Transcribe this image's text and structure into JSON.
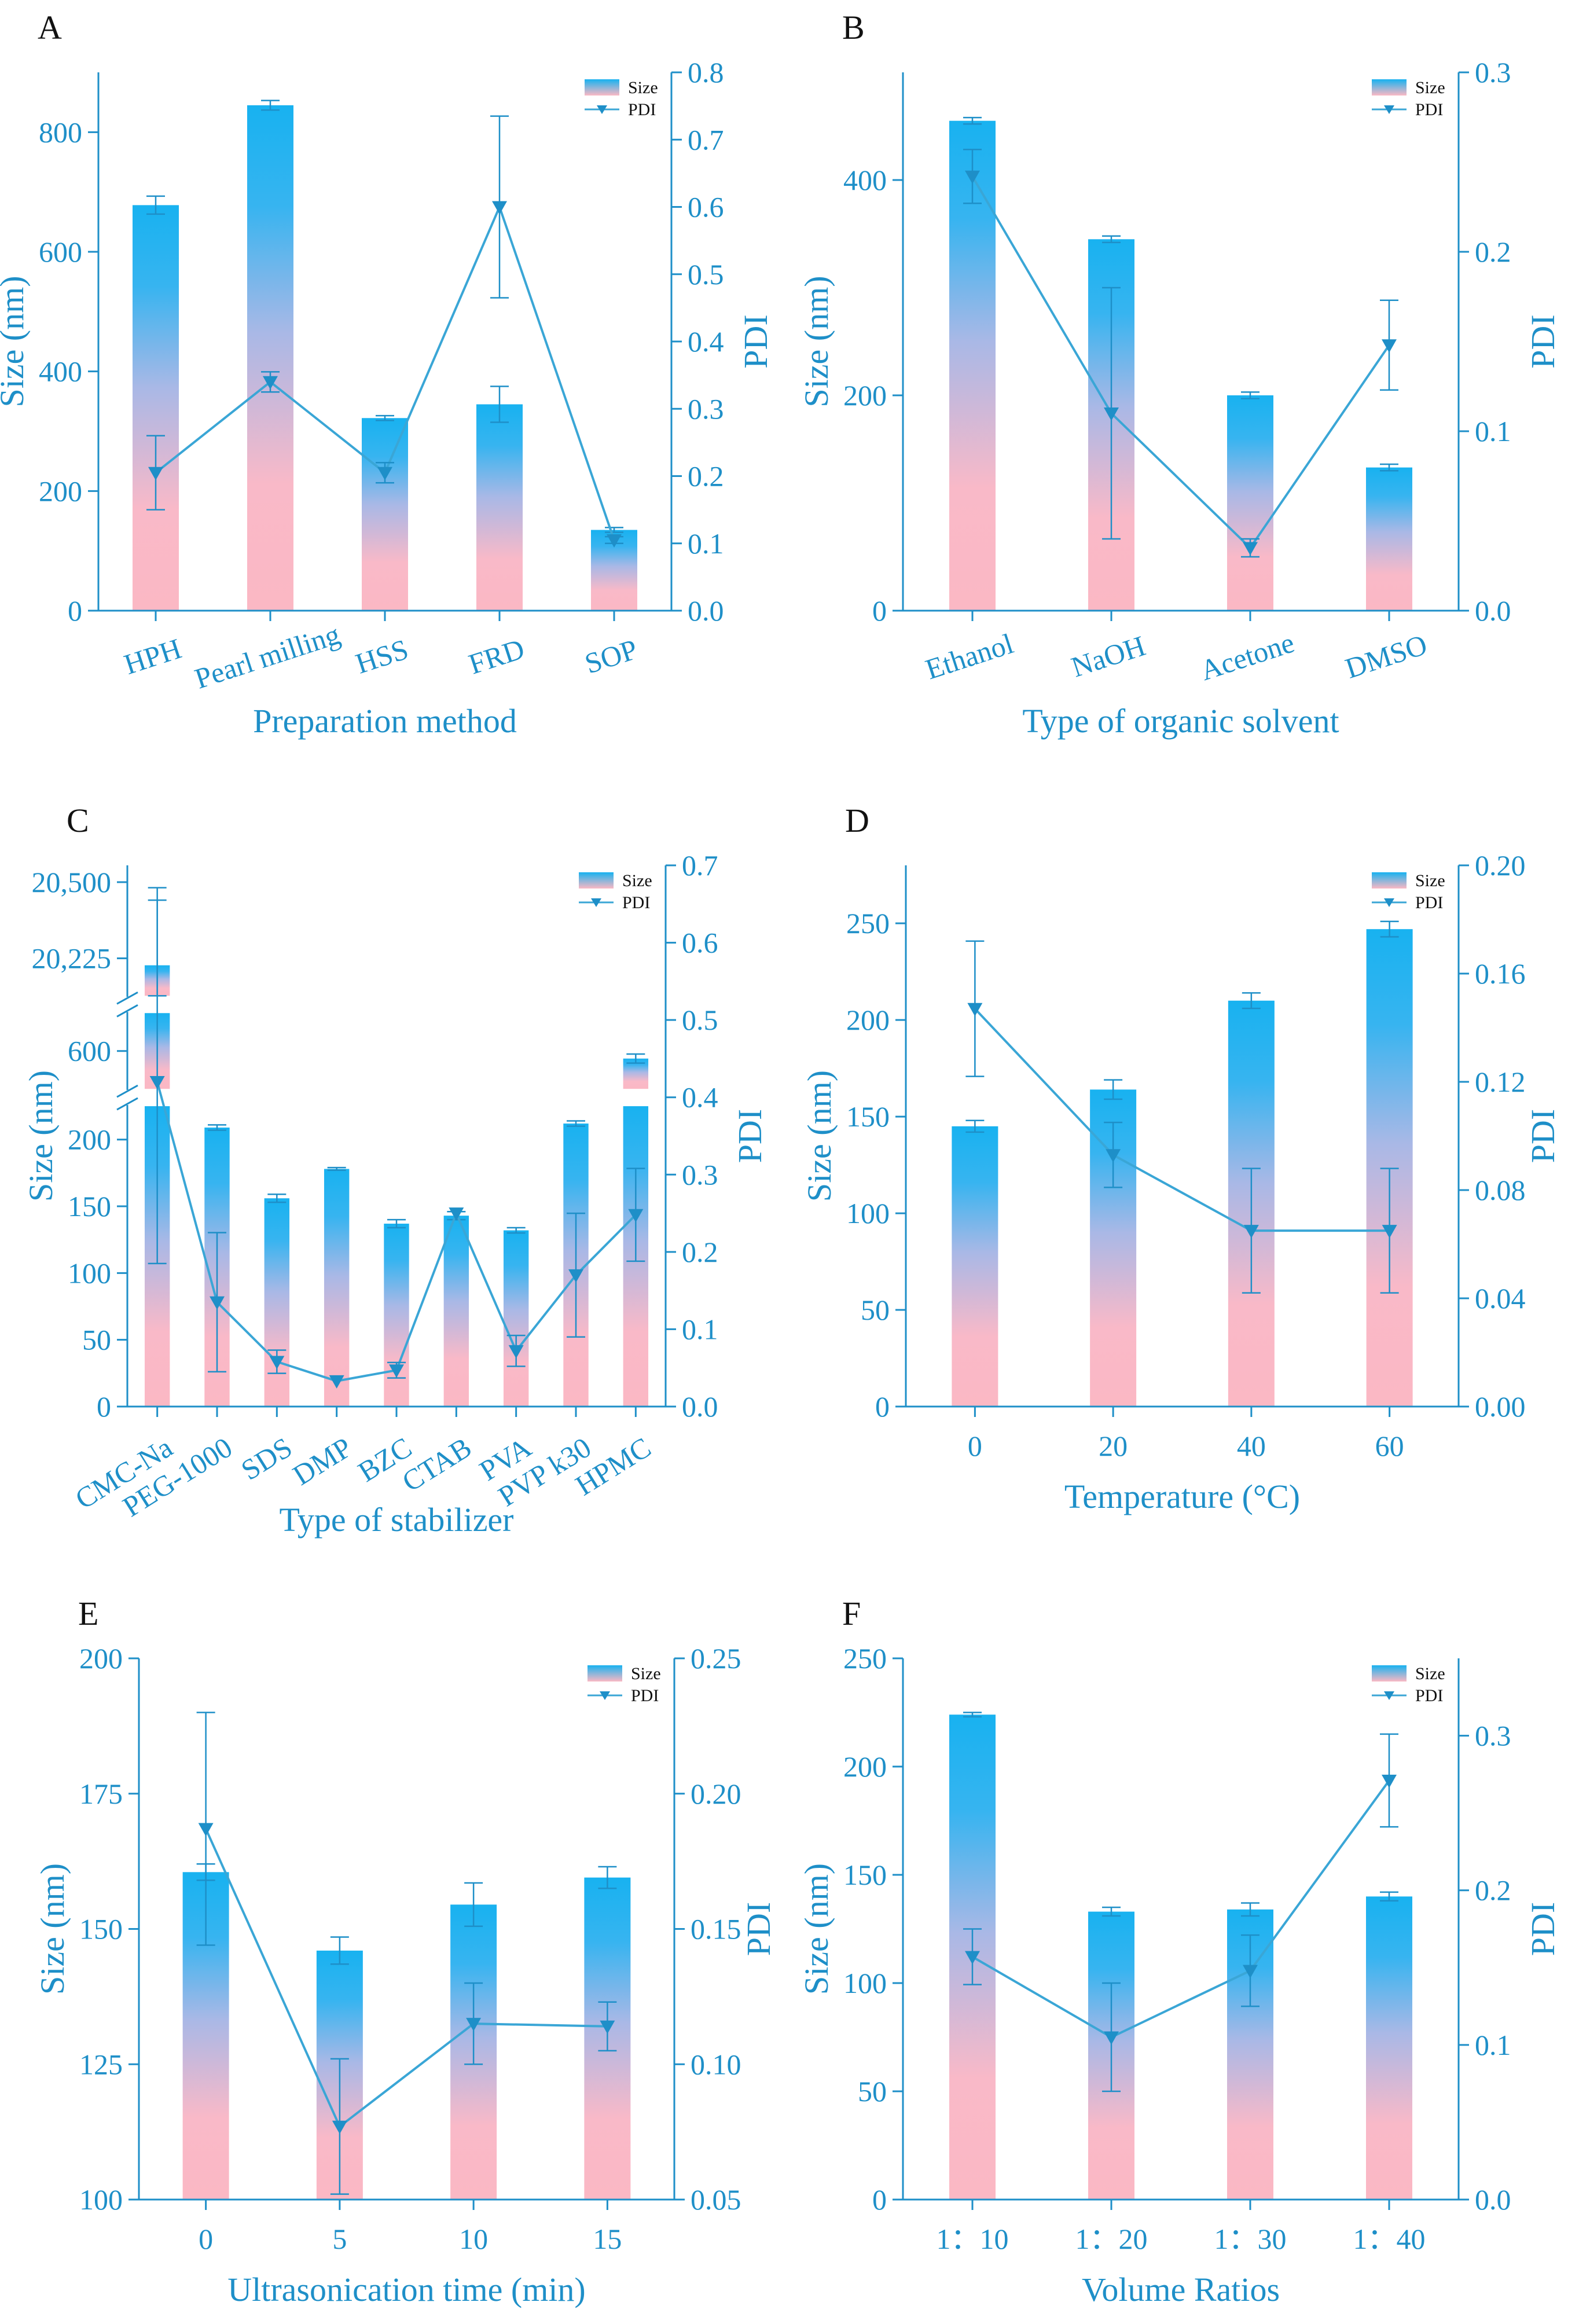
{
  "colors": {
    "axis": "#1e8fc8",
    "bar_top": "#1eb3f0",
    "bar_bottom": "#fbb8c4",
    "line": "#3aa6d6"
  },
  "chart_data": [
    {
      "panel": "A",
      "type": "bar+line",
      "xlabel": "Preparation method",
      "ylabel": "Size (nm)",
      "y2label": "PDI",
      "categories": [
        "HPH",
        "Pearl milling",
        "HSS",
        "FRD",
        "SOP"
      ],
      "ylim": [
        0,
        900
      ],
      "yticks": [
        0,
        200,
        400,
        600,
        800
      ],
      "yticklabels": [
        "0",
        "200",
        "400",
        "600",
        "800"
      ],
      "y2lim": [
        0,
        0.8
      ],
      "y2ticks": [
        0.0,
        0.1,
        0.2,
        0.3,
        0.4,
        0.5,
        0.6,
        0.7,
        0.8
      ],
      "y2ticklabels": [
        "0.0",
        "0.1",
        "0.2",
        "0.3",
        "0.4",
        "0.5",
        "0.6",
        "0.7",
        "0.8"
      ],
      "series": [
        {
          "name": "Size",
          "values": [
            678,
            845,
            322,
            345,
            135
          ],
          "errors": [
            15,
            8,
            4,
            30,
            4
          ]
        },
        {
          "name": "PDI",
          "values": [
            0.205,
            0.34,
            0.205,
            0.6,
            0.105
          ],
          "errors": [
            0.055,
            0.015,
            0.015,
            0.135,
            0.005
          ]
        }
      ],
      "legend": [
        "Size",
        "PDI"
      ]
    },
    {
      "panel": "B",
      "type": "bar+line",
      "xlabel": "Type of organic solvent",
      "ylabel": "Size (nm)",
      "y2label": "PDI",
      "categories": [
        "Ethanol",
        "NaOH",
        "Acetone",
        "DMSO"
      ],
      "ylim": [
        0,
        500
      ],
      "yticks": [
        0,
        200,
        400
      ],
      "yticklabels": [
        "0",
        "200",
        "400"
      ],
      "y2lim": [
        0,
        0.3
      ],
      "y2ticks": [
        0.0,
        0.1,
        0.2,
        0.3
      ],
      "y2ticklabels": [
        "0.0",
        "0.1",
        "0.2",
        "0.3"
      ],
      "series": [
        {
          "name": "Size",
          "values": [
            455,
            345,
            200,
            133
          ],
          "errors": [
            3,
            3,
            3,
            3
          ]
        },
        {
          "name": "PDI",
          "values": [
            0.242,
            0.11,
            0.035,
            0.148
          ],
          "errors": [
            0.015,
            0.07,
            0.005,
            0.025
          ]
        }
      ],
      "legend": [
        "Size",
        "PDI"
      ]
    },
    {
      "panel": "C",
      "type": "bar+line",
      "xlabel": "Type of stabilizer",
      "ylabel": "Size (nm)",
      "y2label": "PDI",
      "categories": [
        "CMC-Na",
        "PEG-1000",
        "SDS",
        "DMP",
        "BZC",
        "CTAB",
        "PVA",
        "PVP k30",
        "HPMC"
      ],
      "ylim_segments": [
        [
          0,
          225
        ],
        [
          475,
          725
        ],
        [
          20090,
          20500
        ]
      ],
      "yticks": [
        0,
        50,
        100,
        150,
        200,
        600,
        20225,
        20500
      ],
      "yticklabels": [
        "0",
        "50",
        "100",
        "150",
        "200",
        "600",
        "20,225",
        "20,500"
      ],
      "y2lim": [
        0,
        0.7
      ],
      "y2ticks": [
        0.0,
        0.1,
        0.2,
        0.3,
        0.4,
        0.5,
        0.6,
        0.7
      ],
      "y2ticklabels": [
        "0.0",
        "0.1",
        "0.2",
        "0.3",
        "0.4",
        "0.5",
        "0.6",
        "0.7"
      ],
      "series": [
        {
          "name": "Size",
          "values": [
            20200,
            209,
            156,
            178,
            137,
            143,
            132,
            212,
            575
          ],
          "errors": [
            280,
            2,
            3,
            1,
            3,
            3,
            2,
            2,
            15
          ]
        },
        {
          "name": "PDI",
          "values": [
            0.42,
            0.135,
            0.058,
            0.033,
            0.047,
            0.25,
            0.072,
            0.17,
            0.248
          ],
          "errors": [
            0.235,
            0.09,
            0.015,
            0.0,
            0.01,
            0.0,
            0.02,
            0.08,
            0.06
          ]
        }
      ],
      "legend": [
        "Size",
        "PDI"
      ]
    },
    {
      "panel": "D",
      "type": "bar+line",
      "xlabel": "Temperature (°C)",
      "ylabel": "Size (nm)",
      "y2label": "PDI",
      "categories": [
        "0",
        "20",
        "40",
        "60"
      ],
      "ylim": [
        0,
        280
      ],
      "yticks": [
        0,
        50,
        100,
        150,
        200,
        250
      ],
      "yticklabels": [
        "0",
        "50",
        "100",
        "150",
        "200",
        "250"
      ],
      "y2lim": [
        0,
        0.2
      ],
      "y2ticks": [
        0.0,
        0.04,
        0.08,
        0.12,
        0.16,
        0.2
      ],
      "y2ticklabels": [
        "0.00",
        "0.04",
        "0.08",
        "0.12",
        "0.16",
        "0.20"
      ],
      "series": [
        {
          "name": "Size",
          "values": [
            145,
            164,
            210,
            247
          ],
          "errors": [
            3,
            5,
            4,
            4
          ]
        },
        {
          "name": "PDI",
          "values": [
            0.147,
            0.093,
            0.065,
            0.065
          ],
          "errors": [
            0.025,
            0.012,
            0.023,
            0.023
          ]
        }
      ],
      "legend": [
        "Size",
        "PDI"
      ]
    },
    {
      "panel": "E",
      "type": "bar+line",
      "xlabel": "Ultrasonication time (min)",
      "ylabel": "Size (nm)",
      "y2label": "PDI",
      "categories": [
        "0",
        "5",
        "10",
        "15"
      ],
      "ylim": [
        100,
        200
      ],
      "yticks": [
        100,
        125,
        150,
        175,
        200
      ],
      "yticklabels": [
        "100",
        "125",
        "150",
        "175",
        "200"
      ],
      "y2lim": [
        0.05,
        0.25
      ],
      "y2ticks": [
        0.05,
        0.1,
        0.15,
        0.2,
        0.25
      ],
      "y2ticklabels": [
        "0.05",
        "0.10",
        "0.15",
        "0.20",
        "0.25"
      ],
      "series": [
        {
          "name": "Size",
          "values": [
            160.5,
            146,
            154.5,
            159.5
          ],
          "errors": [
            1.5,
            2.5,
            4,
            2
          ]
        },
        {
          "name": "PDI",
          "values": [
            0.187,
            0.077,
            0.115,
            0.114
          ],
          "errors": [
            0.043,
            0.025,
            0.015,
            0.009
          ]
        }
      ],
      "legend": [
        "Size",
        "PDI"
      ]
    },
    {
      "panel": "F",
      "type": "bar+line",
      "xlabel": "Volume Ratios",
      "ylabel": "Size (nm)",
      "y2label": "PDI",
      "categories": [
        "1：10",
        "1：20",
        "1：30",
        "1：40"
      ],
      "ylim": [
        0,
        250
      ],
      "yticks": [
        0,
        50,
        100,
        150,
        200,
        250
      ],
      "yticklabels": [
        "0",
        "50",
        "100",
        "150",
        "200",
        "250"
      ],
      "y2lim": [
        0,
        0.35
      ],
      "y2ticks": [
        0.0,
        0.1,
        0.2,
        0.3
      ],
      "y2ticklabels": [
        "0.0",
        "0.1",
        "0.2",
        "0.3"
      ],
      "series": [
        {
          "name": "Size",
          "values": [
            224,
            133,
            134,
            140
          ],
          "errors": [
            1,
            2,
            3,
            2
          ]
        },
        {
          "name": "PDI",
          "values": [
            0.157,
            0.105,
            0.148,
            0.271
          ],
          "errors": [
            0.018,
            0.035,
            0.023,
            0.03
          ]
        }
      ],
      "legend": [
        "Size",
        "PDI"
      ]
    }
  ]
}
